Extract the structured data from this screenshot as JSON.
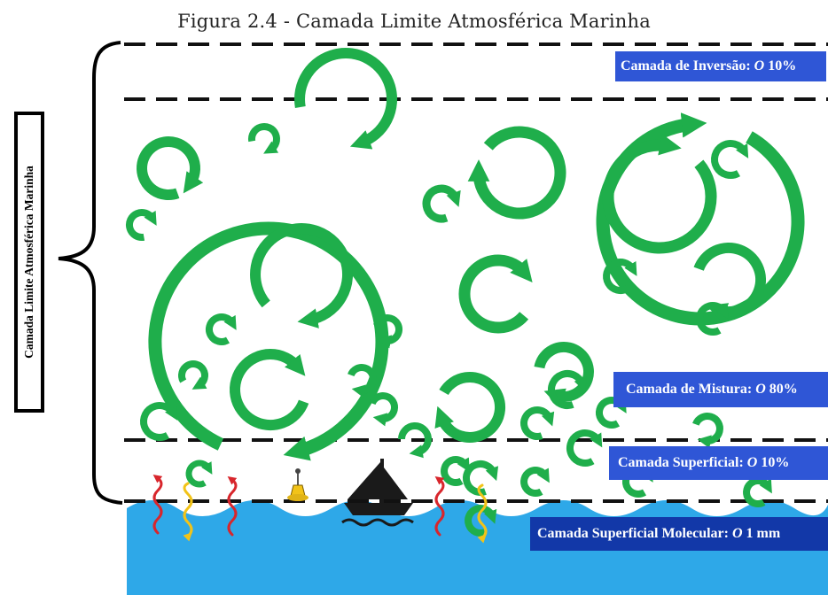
{
  "figure": {
    "title": "Figura 2.4 - Camada Limite Atmosférica Marinha",
    "side_label": "Camada Limite Atmosférica Marinha"
  },
  "layers": {
    "inversao": {
      "name": "Camada de Inversão:",
      "order": "O",
      "value": "10%"
    },
    "mistura": {
      "name": "Camada de Mistura:",
      "order": "O",
      "value": "80%"
    },
    "superficial": {
      "name": "Camada Superficial:",
      "order": "O",
      "value": "10%"
    },
    "molecular": {
      "name": "Camada Superficial Molecular:",
      "order": "O",
      "value": "1 mm"
    }
  },
  "colors": {
    "eddy": "#1fae4b",
    "sea": "#2ea8e8",
    "label_bg": "#2f56d6",
    "label_bg_dark": "#1238a8",
    "heat_flux_red": "#d8262c",
    "heat_flux_yellow": "#f2c318"
  },
  "icons": [
    "turbulent-eddy-icon",
    "sailboat-icon",
    "buoy-icon",
    "heat-flux-arrow-icon"
  ]
}
